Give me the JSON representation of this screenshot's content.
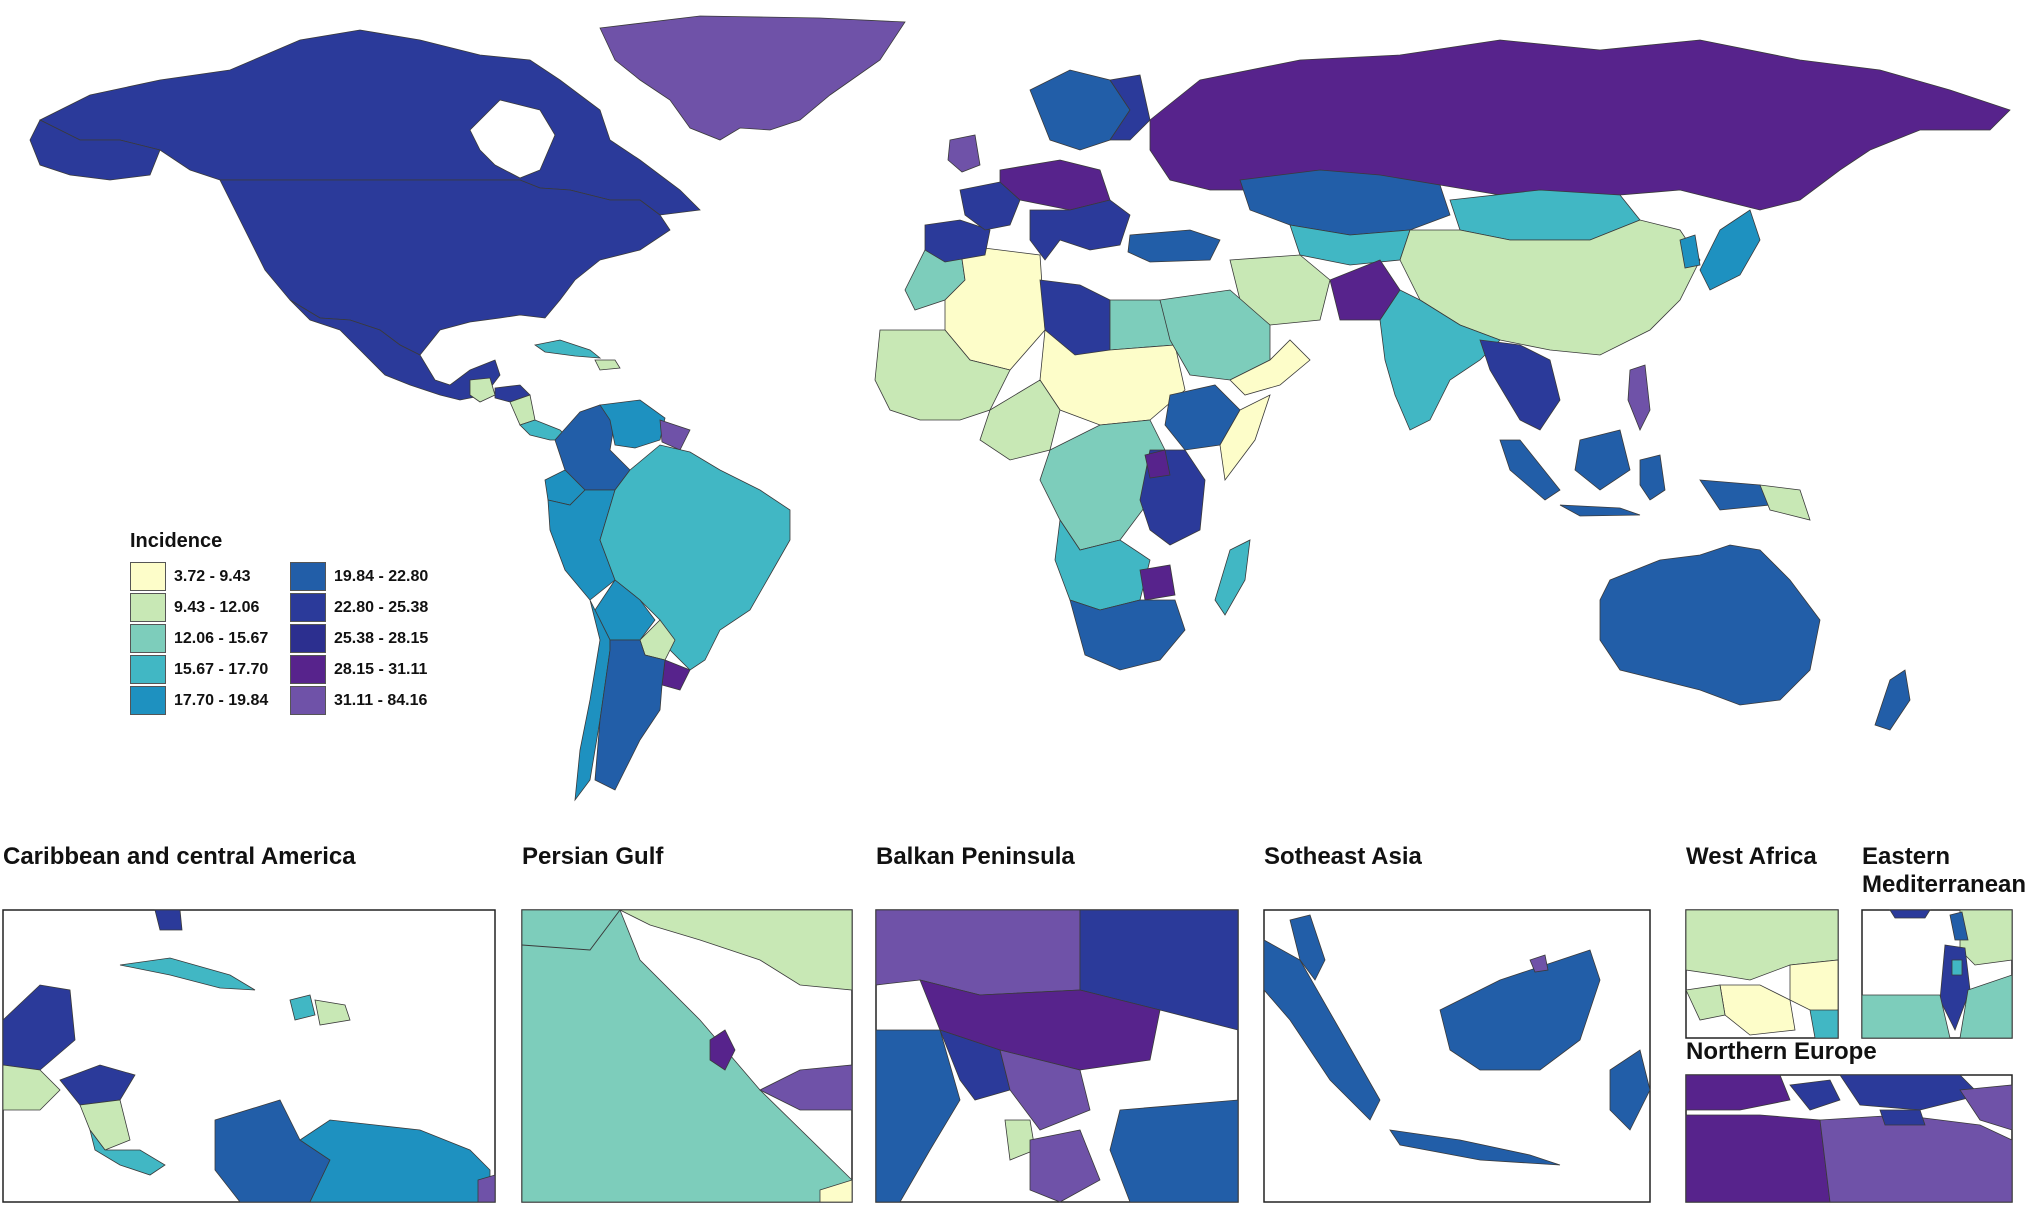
{
  "legend": {
    "title": "Incidence",
    "classes": [
      {
        "label": "3.72 - 9.43",
        "color": "#fdfdc9"
      },
      {
        "label": "9.43 - 12.06",
        "color": "#c8e8b5"
      },
      {
        "label": "12.06 - 15.67",
        "color": "#7dcdbb"
      },
      {
        "label": "15.67 - 17.70",
        "color": "#41b7c4"
      },
      {
        "label": "17.70 - 19.84",
        "color": "#1e91c0"
      },
      {
        "label": "19.84 - 22.80",
        "color": "#225ea8"
      },
      {
        "label": "22.80 - 25.38",
        "color": "#2b3a9a"
      },
      {
        "label": "25.38 - 28.15",
        "color": "#2c2f8f"
      },
      {
        "label": "28.15 - 31.11",
        "color": "#57238c"
      },
      {
        "label": "31.11 - 84.16",
        "color": "#6f52a8"
      }
    ]
  },
  "insets": [
    {
      "id": "caribbean",
      "title": "Caribbean and central America"
    },
    {
      "id": "persian-gulf",
      "title": "Persian Gulf"
    },
    {
      "id": "balkan",
      "title": "Balkan Peninsula"
    },
    {
      "id": "se-asia",
      "title": "Sotheast Asia"
    },
    {
      "id": "west-africa",
      "title": "West Africa"
    },
    {
      "id": "east-med",
      "title": "Eastern Mediterranean"
    },
    {
      "id": "north-europe",
      "title": "Northern Europe"
    }
  ]
}
